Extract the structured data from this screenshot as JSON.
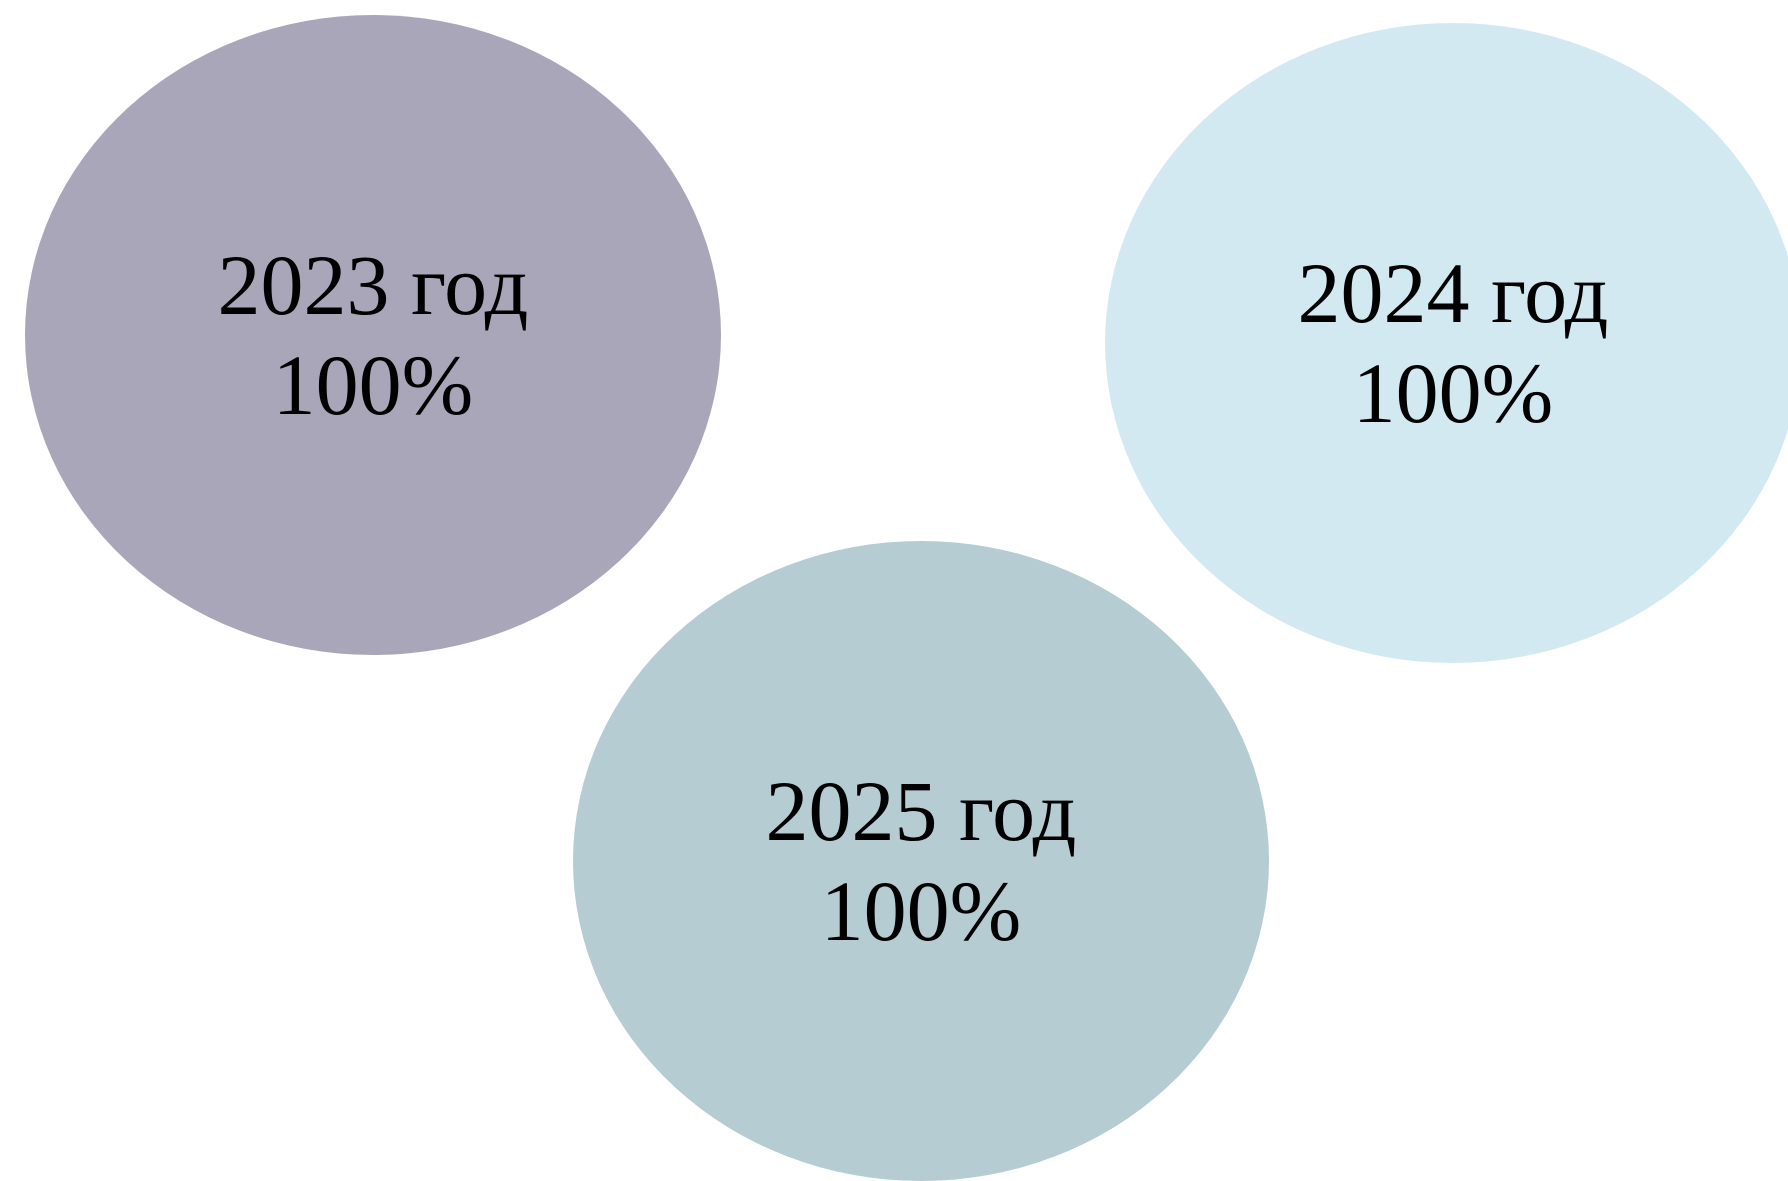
{
  "items": [
    {
      "year": "2023 год",
      "percent": "100%",
      "color": "#a9a6b9"
    },
    {
      "year": "2024 год",
      "percent": "100%",
      "color": "#d3e9f1"
    },
    {
      "year": "2025 год",
      "percent": "100%",
      "color": "#b5ccd3"
    }
  ]
}
